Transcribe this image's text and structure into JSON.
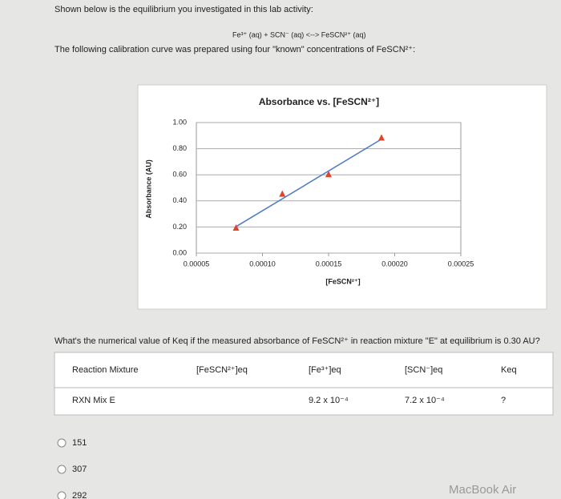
{
  "intro": "Shown below is the equilibrium you investigated in this lab activity:",
  "equation": "Fe³⁺ (aq) + SCN⁻ (aq) <--> FeSCN²⁺ (aq)",
  "calibration_note": "The following calibration curve was prepared using four \"known\" concentrations of FeSCN²⁺:",
  "chart_data": {
    "type": "scatter",
    "title": "Absorbance vs. [FeSCN²⁺]",
    "x_label": "[FeSCN²⁺]",
    "y_label": "Absorbance (AU)",
    "x": [
      8e-05,
      0.000115,
      0.00015,
      0.00019
    ],
    "values": [
      0.19,
      0.45,
      0.6,
      0.88
    ],
    "color": "#e0452b",
    "trendline": true,
    "trendline_color": "#4a78c8",
    "xlim": [
      5e-05,
      0.00025
    ],
    "xticks": [
      5e-05,
      {
        "value": 0.0001,
        "label": "0.00010"
      },
      {
        "value": 0.00015,
        "label": "0.00015"
      },
      {
        "value": 0.0002,
        "label": "0.00020"
      },
      {
        "value": 0.00025,
        "label": "0.00025"
      }
    ],
    "ylim": [
      0,
      1
    ],
    "yticks": [
      {
        "value": 0,
        "label": "0.00"
      },
      {
        "value": 0.2,
        "label": "0.20"
      },
      {
        "value": 0.4,
        "label": "0.40"
      },
      {
        "value": 0.6,
        "label": "0.60"
      },
      {
        "value": 0.8,
        "label": "0.80"
      },
      {
        "value": 1,
        "label": "1.00"
      }
    ],
    "grid": true
  },
  "question": "What's the numerical value of Keq if the measured absorbance of FeSCN²⁺ in reaction mixture \"E\" at equilibrium is 0.30 AU?",
  "table": {
    "header": [
      "Reaction Mixture",
      "[FeSCN²⁺]eq",
      "[Fe³⁺]eq",
      "[SCN⁻]eq",
      "Keq"
    ],
    "rows": [
      [
        "RXN Mix E",
        null,
        "9.2 x 10⁻⁴",
        "7.2 x 10⁻⁴",
        "?"
      ]
    ]
  },
  "options": [
    "151",
    "307",
    "292"
  ],
  "watermark": "MacBook Air"
}
